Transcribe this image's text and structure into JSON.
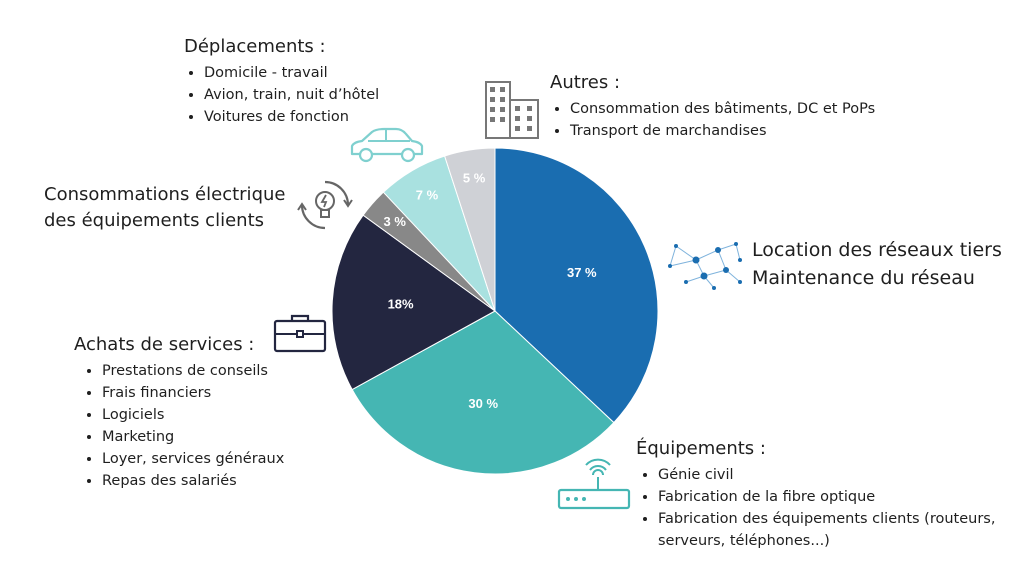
{
  "chart_data": {
    "type": "pie",
    "slices": [
      {
        "key": "location",
        "value": 37,
        "label": "37 %",
        "color": "#1a6db0"
      },
      {
        "key": "equipements",
        "value": 30,
        "label": "30 %",
        "color": "#45b6b3"
      },
      {
        "key": "achats",
        "value": 18,
        "label": "18%",
        "color": "#232640"
      },
      {
        "key": "conso",
        "value": 3,
        "label": "3 %",
        "color": "#888888"
      },
      {
        "key": "deplacements",
        "value": 7,
        "label": "7 %",
        "color": "#a9e1e0"
      },
      {
        "key": "autres",
        "value": 5,
        "label": "5 %",
        "color": "#cfd1d6"
      }
    ]
  },
  "annotations": {
    "deplacements": {
      "title": "Déplacements :",
      "items": [
        "Domicile - travail",
        "Avion, train, nuit d’hôtel",
        "Voitures de fonction"
      ]
    },
    "autres": {
      "title": "Autres :",
      "items": [
        "Consommation des bâtiments, DC et PoPs",
        "Transport de marchandises"
      ]
    },
    "conso": {
      "line1": "Consommations électrique",
      "line2": "des équipements clients"
    },
    "location": {
      "line1": "Location des réseaux tiers",
      "line2": "Maintenance du réseau"
    },
    "achats": {
      "title": "Achats de services :",
      "items": [
        "Prestations de conseils",
        "Frais financiers",
        "Logiciels",
        "Marketing",
        "Loyer, services généraux",
        "Repas des salariés"
      ]
    },
    "equipements": {
      "title": "Équipements :",
      "items": [
        "Génie civil",
        "Fabrication de la fibre optique",
        "Fabrication des équipements clients (routeurs, serveurs, téléphones...)"
      ]
    }
  },
  "icons": {
    "car": "car-icon",
    "buildings": "buildings-icon",
    "bulb": "lightbulb-icon",
    "network": "network-icon",
    "briefcase": "briefcase-icon",
    "router": "router-icon"
  }
}
